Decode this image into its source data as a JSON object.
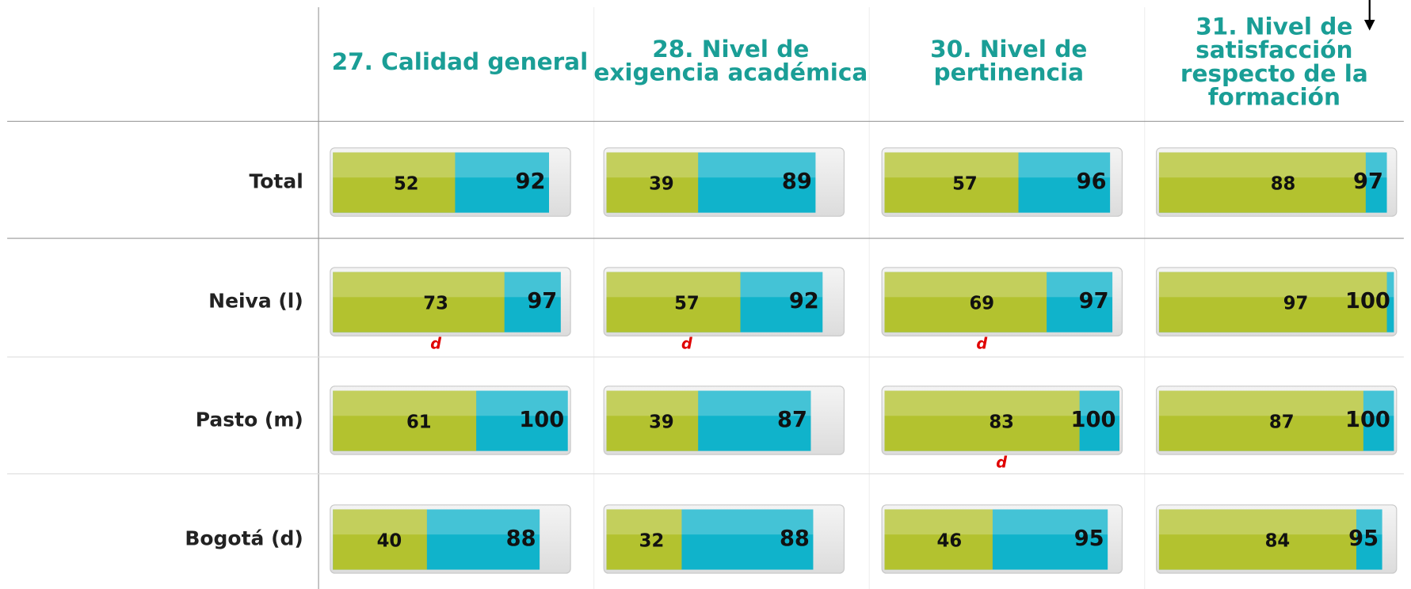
{
  "table": {
    "xlim": [
      0,
      100
    ],
    "colors": {
      "inner": "#b3c22f",
      "outer": "#10b3cb",
      "note": "#e00000"
    },
    "columns": [
      {
        "header": [
          "27. Calidad general"
        ]
      },
      {
        "header": [
          "28. Nivel de",
          "exigencia académica"
        ]
      },
      {
        "header": [
          "30. Nivel de",
          "pertinencia"
        ]
      },
      {
        "header": [
          "31. Nivel de",
          "satisfacción",
          "respecto de la",
          "formación"
        ]
      }
    ],
    "rows": [
      {
        "label": "Total",
        "cells": [
          {
            "values": [
              52,
              92
            ]
          },
          {
            "values": [
              39,
              89
            ]
          },
          {
            "values": [
              57,
              96
            ]
          },
          {
            "values": [
              88,
              97
            ]
          }
        ]
      },
      {
        "label": "Neiva (l)",
        "cells": [
          {
            "values": [
              73,
              97
            ],
            "note": "d"
          },
          {
            "values": [
              57,
              92
            ],
            "note": "d"
          },
          {
            "values": [
              69,
              97
            ],
            "note": "d"
          },
          {
            "values": [
              97,
              100
            ]
          }
        ]
      },
      {
        "label": "Pasto (m)",
        "cells": [
          {
            "values": [
              61,
              100
            ]
          },
          {
            "values": [
              39,
              87
            ]
          },
          {
            "values": [
              83,
              100
            ],
            "note": "d"
          },
          {
            "values": [
              87,
              100
            ]
          }
        ]
      },
      {
        "label": "Bogotá (d)",
        "cells": [
          {
            "values": [
              40,
              88
            ]
          },
          {
            "values": [
              32,
              88
            ]
          },
          {
            "values": [
              46,
              95
            ]
          },
          {
            "values": [
              84,
              95
            ]
          }
        ]
      }
    ]
  }
}
